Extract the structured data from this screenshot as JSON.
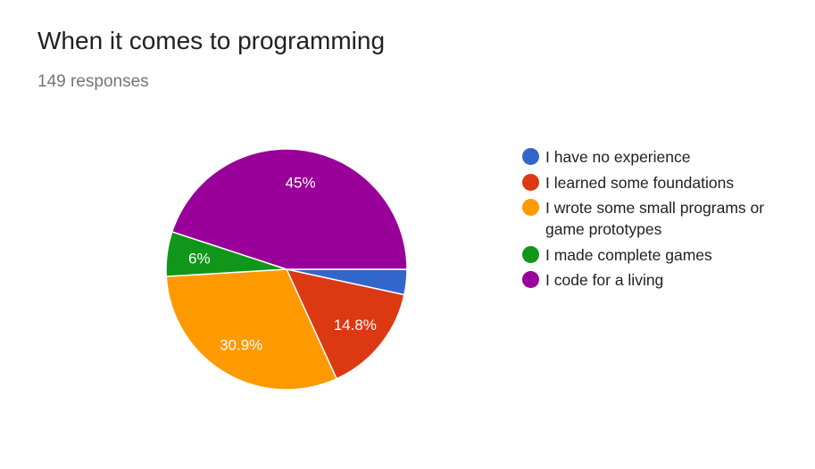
{
  "header": {
    "title": "When it comes to programming",
    "responses": "149 responses"
  },
  "chart_data": {
    "type": "pie",
    "title": "When it comes to programming",
    "subtitle": "149 responses",
    "legend_position": "right",
    "slices": [
      {
        "label": "I have no experience",
        "value": 3.4,
        "display": "",
        "color": "#3366cc"
      },
      {
        "label": "I learned some foundations",
        "value": 14.8,
        "display": "14.8%",
        "color": "#dc3912"
      },
      {
        "label": "I wrote some small programs or game prototypes",
        "value": 30.9,
        "display": "30.9%",
        "color": "#ff9900"
      },
      {
        "label": "I made complete games",
        "value": 6.0,
        "display": "6%",
        "color": "#109618"
      },
      {
        "label": "I code for a living",
        "value": 45.0,
        "display": "45%",
        "color": "#990099"
      }
    ]
  }
}
